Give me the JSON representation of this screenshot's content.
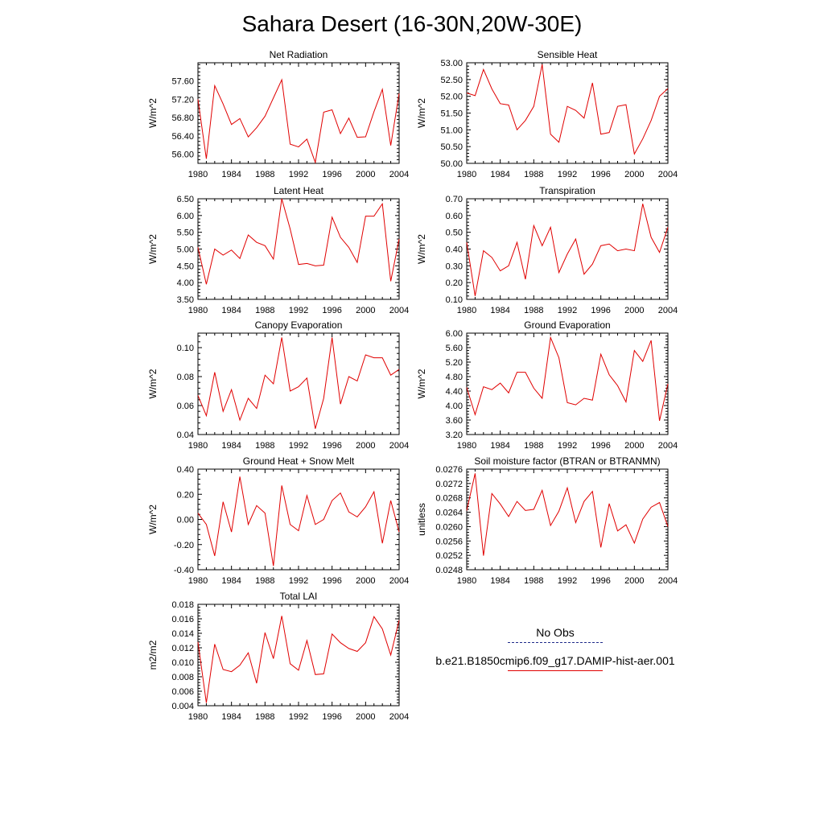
{
  "title": "Sahara Desert (16-30N,20W-30E)",
  "legend": {
    "obs_label": "No Obs",
    "model_label": "b.e21.B1850cmip6.f09_g17.DAMIP-hist-aer.001",
    "obs_color": "#1f2a8a",
    "model_color": "#e00000"
  },
  "chart_data": [
    {
      "type": "line",
      "title": "Net Radiation",
      "ylabel": "W/m^2",
      "xlim": [
        1980,
        2004
      ],
      "xticks": [
        1980,
        1984,
        1988,
        1992,
        1996,
        2000,
        2004
      ],
      "ylim": [
        55.8,
        58.0
      ],
      "yticks": [
        56.0,
        56.4,
        56.8,
        57.2,
        57.6
      ],
      "ytick_labels": [
        "56.00",
        "56.40",
        "56.80",
        "57.20",
        "57.60"
      ],
      "x": [
        1980,
        1981,
        1982,
        1983,
        1984,
        1985,
        1986,
        1987,
        1988,
        1989,
        1990,
        1991,
        1992,
        1993,
        1994,
        1995,
        1996,
        1997,
        1998,
        1999,
        2000,
        2001,
        2002,
        2003,
        2004
      ],
      "series": [
        {
          "color": "#e00000",
          "values": [
            57.2,
            55.9,
            57.5,
            57.1,
            56.65,
            56.78,
            56.38,
            56.58,
            56.83,
            57.23,
            57.63,
            56.22,
            56.16,
            56.33,
            55.82,
            56.92,
            56.97,
            56.45,
            56.79,
            56.37,
            56.38,
            56.93,
            57.42,
            56.19,
            57.33
          ]
        }
      ]
    },
    {
      "type": "line",
      "title": "Sensible Heat",
      "ylabel": "W/m^2",
      "xlim": [
        1980,
        2004
      ],
      "xticks": [
        1980,
        1984,
        1988,
        1992,
        1996,
        2000,
        2004
      ],
      "ylim": [
        50.0,
        53.0
      ],
      "yticks": [
        50.0,
        50.5,
        51.0,
        51.5,
        52.0,
        52.5,
        53.0
      ],
      "ytick_labels": [
        "50.00",
        "50.50",
        "51.00",
        "51.50",
        "52.00",
        "52.50",
        "53.00"
      ],
      "x": [
        1980,
        1981,
        1982,
        1983,
        1984,
        1985,
        1986,
        1987,
        1988,
        1989,
        1990,
        1991,
        1992,
        1993,
        1994,
        1995,
        1996,
        1997,
        1998,
        1999,
        2000,
        2001,
        2002,
        2003,
        2004
      ],
      "series": [
        {
          "color": "#e00000",
          "values": [
            52.1,
            52.02,
            52.8,
            52.22,
            51.78,
            51.74,
            51.0,
            51.28,
            51.7,
            52.95,
            50.87,
            50.63,
            51.7,
            51.58,
            51.35,
            52.4,
            50.87,
            50.92,
            51.7,
            51.75,
            50.28,
            50.73,
            51.28,
            52.0,
            52.23
          ]
        }
      ]
    },
    {
      "type": "line",
      "title": "Latent Heat",
      "ylabel": "W/m^2",
      "xlim": [
        1980,
        2004
      ],
      "xticks": [
        1980,
        1984,
        1988,
        1992,
        1996,
        2000,
        2004
      ],
      "ylim": [
        3.5,
        6.5
      ],
      "yticks": [
        3.5,
        4.0,
        4.5,
        5.0,
        5.5,
        6.0,
        6.5
      ],
      "ytick_labels": [
        "3.50",
        "4.00",
        "4.50",
        "5.00",
        "5.50",
        "6.00",
        "6.50"
      ],
      "x": [
        1980,
        1981,
        1982,
        1983,
        1984,
        1985,
        1986,
        1987,
        1988,
        1989,
        1990,
        1991,
        1992,
        1993,
        1994,
        1995,
        1996,
        1997,
        1998,
        1999,
        2000,
        2001,
        2002,
        2003,
        2004
      ],
      "series": [
        {
          "color": "#e00000",
          "values": [
            5.05,
            3.95,
            5.0,
            4.82,
            4.97,
            4.72,
            5.42,
            5.2,
            5.1,
            4.7,
            6.5,
            5.6,
            4.54,
            4.57,
            4.5,
            4.52,
            5.95,
            5.35,
            5.05,
            4.6,
            5.98,
            5.98,
            6.35,
            4.04,
            5.3
          ]
        }
      ]
    },
    {
      "type": "line",
      "title": "Transpiration",
      "ylabel": "W/m^2",
      "xlim": [
        1980,
        2004
      ],
      "xticks": [
        1980,
        1984,
        1988,
        1992,
        1996,
        2000,
        2004
      ],
      "ylim": [
        0.1,
        0.7
      ],
      "yticks": [
        0.1,
        0.2,
        0.3,
        0.4,
        0.5,
        0.6,
        0.7
      ],
      "ytick_labels": [
        "0.10",
        "0.20",
        "0.30",
        "0.40",
        "0.50",
        "0.60",
        "0.70"
      ],
      "x": [
        1980,
        1981,
        1982,
        1983,
        1984,
        1985,
        1986,
        1987,
        1988,
        1989,
        1990,
        1991,
        1992,
        1993,
        1994,
        1995,
        1996,
        1997,
        1998,
        1999,
        2000,
        2001,
        2002,
        2003,
        2004
      ],
      "series": [
        {
          "color": "#e00000",
          "values": [
            0.44,
            0.12,
            0.39,
            0.35,
            0.27,
            0.3,
            0.44,
            0.22,
            0.54,
            0.42,
            0.53,
            0.26,
            0.37,
            0.46,
            0.25,
            0.31,
            0.42,
            0.43,
            0.39,
            0.4,
            0.39,
            0.67,
            0.47,
            0.38,
            0.53
          ]
        }
      ]
    },
    {
      "type": "line",
      "title": "Canopy Evaporation",
      "ylabel": "W/m^2",
      "xlim": [
        1980,
        2004
      ],
      "xticks": [
        1980,
        1984,
        1988,
        1992,
        1996,
        2000,
        2004
      ],
      "ylim": [
        0.04,
        0.11
      ],
      "yticks": [
        0.04,
        0.06,
        0.08,
        0.1
      ],
      "ytick_labels": [
        "0.04",
        "0.06",
        "0.08",
        "0.10"
      ],
      "x": [
        1980,
        1981,
        1982,
        1983,
        1984,
        1985,
        1986,
        1987,
        1988,
        1989,
        1990,
        1991,
        1992,
        1993,
        1994,
        1995,
        1996,
        1997,
        1998,
        1999,
        2000,
        2001,
        2002,
        2003,
        2004
      ],
      "series": [
        {
          "color": "#e00000",
          "values": [
            0.067,
            0.053,
            0.083,
            0.056,
            0.071,
            0.05,
            0.065,
            0.058,
            0.081,
            0.075,
            0.107,
            0.07,
            0.073,
            0.079,
            0.044,
            0.065,
            0.107,
            0.061,
            0.08,
            0.077,
            0.095,
            0.093,
            0.093,
            0.081,
            0.085
          ]
        }
      ]
    },
    {
      "type": "line",
      "title": "Ground Evaporation",
      "ylabel": "W/m^2",
      "xlim": [
        1980,
        2004
      ],
      "xticks": [
        1980,
        1984,
        1988,
        1992,
        1996,
        2000,
        2004
      ],
      "ylim": [
        3.2,
        6.0
      ],
      "yticks": [
        3.2,
        3.6,
        4.0,
        4.4,
        4.8,
        5.2,
        5.6,
        6.0
      ],
      "ytick_labels": [
        "3.20",
        "3.60",
        "4.00",
        "4.40",
        "4.80",
        "5.20",
        "5.60",
        "6.00"
      ],
      "x": [
        1980,
        1981,
        1982,
        1983,
        1984,
        1985,
        1986,
        1987,
        1988,
        1989,
        1990,
        1991,
        1992,
        1993,
        1994,
        1995,
        1996,
        1997,
        1998,
        1999,
        2000,
        2001,
        2002,
        2003,
        2004
      ],
      "series": [
        {
          "color": "#e00000",
          "values": [
            4.5,
            3.75,
            4.52,
            4.44,
            4.62,
            4.35,
            4.92,
            4.92,
            4.48,
            4.2,
            5.88,
            5.32,
            4.08,
            4.02,
            4.2,
            4.15,
            5.42,
            4.85,
            4.55,
            4.1,
            5.52,
            5.22,
            5.8,
            3.58,
            4.6
          ]
        }
      ]
    },
    {
      "type": "line",
      "title": "Ground Heat + Snow Melt",
      "ylabel": "W/m^2",
      "xlim": [
        1980,
        2004
      ],
      "xticks": [
        1980,
        1984,
        1988,
        1992,
        1996,
        2000,
        2004
      ],
      "ylim": [
        -0.4,
        0.4
      ],
      "yticks": [
        -0.4,
        -0.2,
        0.0,
        0.2,
        0.4
      ],
      "ytick_labels": [
        "-0.40",
        "-0.20",
        "0.00",
        "0.20",
        "0.40"
      ],
      "x": [
        1980,
        1981,
        1982,
        1983,
        1984,
        1985,
        1986,
        1987,
        1988,
        1989,
        1990,
        1991,
        1992,
        1993,
        1994,
        1995,
        1996,
        1997,
        1998,
        1999,
        2000,
        2001,
        2002,
        2003,
        2004
      ],
      "series": [
        {
          "color": "#e00000",
          "values": [
            0.05,
            -0.04,
            -0.29,
            0.14,
            -0.1,
            0.34,
            -0.04,
            0.11,
            0.05,
            -0.37,
            0.27,
            -0.04,
            -0.09,
            0.19,
            -0.04,
            0.0,
            0.15,
            0.21,
            0.06,
            0.02,
            0.1,
            0.22,
            -0.19,
            0.15,
            -0.1
          ]
        }
      ]
    },
    {
      "type": "line",
      "title": "Soil moisture factor (BTRAN or BTRANMN)",
      "ylabel": "unitless",
      "xlim": [
        1980,
        2004
      ],
      "xticks": [
        1980,
        1984,
        1988,
        1992,
        1996,
        2000,
        2004
      ],
      "ylim": [
        0.0248,
        0.0276
      ],
      "yticks": [
        0.0248,
        0.0252,
        0.0256,
        0.026,
        0.0264,
        0.0268,
        0.0272,
        0.0276
      ],
      "ytick_labels": [
        "0.0248",
        "0.0252",
        "0.0256",
        "0.0260",
        "0.0264",
        "0.0268",
        "0.0272",
        "0.0276"
      ],
      "x": [
        1980,
        1981,
        1982,
        1983,
        1984,
        1985,
        1986,
        1987,
        1988,
        1989,
        1990,
        1991,
        1992,
        1993,
        1994,
        1995,
        1996,
        1997,
        1998,
        1999,
        2000,
        2001,
        2002,
        2003,
        2004
      ],
      "series": [
        {
          "color": "#e00000",
          "values": [
            0.02645,
            0.02748,
            0.02519,
            0.02692,
            0.02663,
            0.02628,
            0.0267,
            0.02645,
            0.02648,
            0.02701,
            0.02603,
            0.02643,
            0.02708,
            0.02611,
            0.0267,
            0.02698,
            0.02542,
            0.02664,
            0.02588,
            0.02605,
            0.02554,
            0.02621,
            0.02654,
            0.02667,
            0.026
          ]
        }
      ]
    },
    {
      "type": "line",
      "title": "Total LAI",
      "ylabel": "m2/m2",
      "xlim": [
        1980,
        2004
      ],
      "xticks": [
        1980,
        1984,
        1988,
        1992,
        1996,
        2000,
        2004
      ],
      "ylim": [
        0.004,
        0.018
      ],
      "yticks": [
        0.004,
        0.006,
        0.008,
        0.01,
        0.012,
        0.014,
        0.016,
        0.018
      ],
      "ytick_labels": [
        "0.004",
        "0.006",
        "0.008",
        "0.010",
        "0.012",
        "0.014",
        "0.016",
        "0.018"
      ],
      "x": [
        1980,
        1981,
        1982,
        1983,
        1984,
        1985,
        1986,
        1987,
        1988,
        1989,
        1990,
        1991,
        1992,
        1993,
        1994,
        1995,
        1996,
        1997,
        1998,
        1999,
        2000,
        2001,
        2002,
        2003,
        2004
      ],
      "series": [
        {
          "color": "#e00000",
          "values": [
            0.0128,
            0.0044,
            0.0125,
            0.009,
            0.0087,
            0.0096,
            0.0113,
            0.0071,
            0.0141,
            0.0105,
            0.0164,
            0.0098,
            0.0089,
            0.013,
            0.0083,
            0.0084,
            0.0139,
            0.0127,
            0.0119,
            0.0115,
            0.0127,
            0.0163,
            0.0146,
            0.011,
            0.0158
          ]
        }
      ]
    }
  ]
}
